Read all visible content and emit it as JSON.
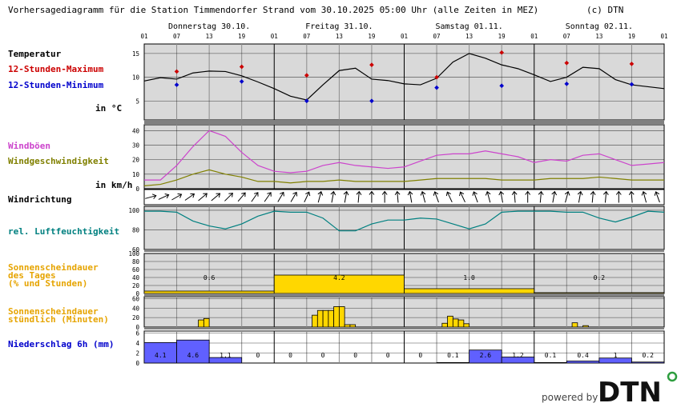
{
  "title": "Vorhersagediagramm für die Station Timmendorfer Strand vom 30.10.2025 05:00 Uhr (alle Zeiten in MEZ)",
  "copyright": "(c) DTN",
  "powered_by": "powered by",
  "logo_text": "DTN",
  "colors": {
    "tmax": "#cc0000",
    "tmin": "#0000cc",
    "gust": "#cc44cc",
    "wind": "#808000",
    "humidity": "#008080",
    "sun": "#ffd700",
    "precip": "#6060ff",
    "panel_bg": "#d9d9d9"
  },
  "days": [
    "Donnerstag 30.10.",
    "Freitag 31.10.",
    "Samstag 01.11.",
    "Sonntag 02.11."
  ],
  "hour_labels": [
    "01",
    "07",
    "13",
    "19",
    "01",
    "07",
    "13",
    "19",
    "01",
    "07",
    "13",
    "19",
    "01",
    "07",
    "13",
    "19",
    "01"
  ],
  "labels": {
    "temp": "Temperatur",
    "tmax": "12-Stunden-Maximum",
    "tmin": "12-Stunden-Minimum",
    "temp_unit": "in °C",
    "gust": "Windböen",
    "wind": "Windgeschwindigkeit",
    "wind_unit": "in km/h",
    "winddir": "Windrichtung",
    "humidity": "rel. Luftfeuchtigkeit",
    "sun_daily_1": "Sonnenscheindauer",
    "sun_daily_2": "des Tages",
    "sun_daily_3": "(% und Stunden)",
    "sun_hourly_1": "Sonnenscheindauer",
    "sun_hourly_2": "stündlich (Minuten)",
    "precip": "Niederschlag 6h (mm)"
  },
  "chart_data": [
    {
      "type": "line",
      "name": "temperature",
      "x_hours": [
        0,
        3,
        6,
        9,
        12,
        15,
        18,
        21,
        24,
        27,
        30,
        33,
        36,
        39,
        42,
        45,
        48,
        51,
        54,
        57,
        60,
        63,
        66,
        69,
        72,
        75,
        78,
        81,
        84,
        87,
        90,
        93,
        96
      ],
      "y": [
        9.2,
        9.9,
        9.6,
        10.9,
        11.3,
        11.2,
        10.3,
        9.0,
        7.6,
        6.0,
        5.2,
        8.4,
        11.4,
        11.9,
        9.6,
        9.3,
        8.6,
        8.4,
        9.8,
        13.2,
        15.0,
        14.0,
        12.6,
        11.8,
        10.5,
        9.1,
        10.0,
        12.1,
        11.8,
        9.5,
        8.4,
        8.0,
        7.6
      ],
      "yticks": [
        5,
        10,
        15
      ],
      "tmax": [
        [
          6,
          11.2
        ],
        [
          18,
          12.2
        ],
        [
          30,
          10.4
        ],
        [
          42,
          12.6
        ],
        [
          54,
          10.0
        ],
        [
          66,
          15.2
        ],
        [
          78,
          13.0
        ],
        [
          90,
          12.8
        ]
      ],
      "tmin": [
        [
          6,
          8.4
        ],
        [
          18,
          9.1
        ],
        [
          30,
          5.0
        ],
        [
          42,
          5.0
        ],
        [
          54,
          7.8
        ],
        [
          66,
          8.2
        ],
        [
          78,
          8.6
        ],
        [
          90,
          8.5
        ]
      ]
    },
    {
      "type": "line",
      "name": "wind",
      "x_hours": [
        0,
        3,
        6,
        9,
        12,
        15,
        18,
        21,
        24,
        27,
        30,
        33,
        36,
        39,
        42,
        45,
        48,
        51,
        54,
        57,
        60,
        63,
        66,
        69,
        72,
        75,
        78,
        81,
        84,
        87,
        90,
        93,
        96
      ],
      "gusts": [
        6,
        6,
        16,
        29,
        40,
        36,
        25,
        16,
        12,
        11,
        12,
        16,
        18,
        16,
        15,
        14,
        15,
        19,
        23,
        24,
        24,
        26,
        24,
        22,
        18,
        20,
        19,
        23,
        24,
        20,
        16,
        17,
        18
      ],
      "wind": [
        2,
        3,
        6,
        10,
        13,
        10,
        8,
        5,
        5,
        4,
        5,
        5,
        6,
        5,
        5,
        5,
        5,
        6,
        7,
        7,
        7,
        7,
        6,
        6,
        6,
        7,
        7,
        7,
        8,
        7,
        6,
        6,
        6
      ],
      "yticks": [
        0,
        10,
        20,
        30,
        40
      ]
    },
    {
      "type": "table",
      "name": "wind_direction",
      "angles_deg": [
        75,
        65,
        60,
        55,
        50,
        50,
        45,
        40,
        35,
        35,
        30,
        30,
        25,
        15,
        10,
        10,
        5,
        0,
        0,
        355,
        350,
        345,
        340,
        335,
        335,
        340,
        345,
        350,
        355,
        0,
        5,
        10,
        15,
        10,
        5,
        5,
        0,
        355,
        345,
        340
      ]
    },
    {
      "type": "line",
      "name": "humidity",
      "x_hours": [
        0,
        3,
        6,
        9,
        12,
        15,
        18,
        21,
        24,
        27,
        30,
        33,
        36,
        39,
        42,
        45,
        48,
        51,
        54,
        57,
        60,
        63,
        66,
        69,
        72,
        75,
        78,
        81,
        84,
        87,
        90,
        93,
        96
      ],
      "y": [
        99,
        99,
        98,
        89,
        84,
        81,
        86,
        94,
        99,
        98,
        98,
        92,
        79,
        79,
        86,
        90,
        90,
        92,
        91,
        86,
        81,
        86,
        98,
        99,
        99,
        99,
        98,
        98,
        92,
        88,
        93,
        99,
        98
      ],
      "yticks": [
        60,
        80,
        100
      ]
    },
    {
      "type": "bar",
      "name": "sunshine_daily",
      "categories": [
        "30.10.",
        "31.10.",
        "01.11.",
        "02.11."
      ],
      "percent": [
        6,
        46,
        12,
        2
      ],
      "hours": [
        "0.6",
        "4.2",
        "1.0",
        "0.2"
      ],
      "yticks": [
        0,
        20,
        40,
        60,
        80,
        100
      ]
    },
    {
      "type": "bar",
      "name": "sunshine_hourly",
      "hours": [
        10,
        11,
        31,
        32,
        33,
        34,
        35,
        36,
        37,
        38,
        55,
        56,
        57,
        58,
        59,
        79,
        81
      ],
      "minutes": [
        15,
        18,
        25,
        35,
        35,
        35,
        43,
        43,
        5,
        5,
        8,
        23,
        17,
        15,
        7,
        9,
        3
      ],
      "yticks": [
        0,
        20,
        40,
        60
      ]
    },
    {
      "type": "bar",
      "name": "precipitation_6h",
      "values": [
        4.1,
        4.6,
        1.1,
        0,
        0,
        0,
        0,
        0,
        0,
        0.1,
        2.6,
        1.2,
        0.1,
        0.4,
        1,
        0.2
      ],
      "labels": [
        "4.1",
        "4.6",
        "1.1",
        "0",
        "0",
        "0",
        "0",
        "0",
        "0",
        "0.1",
        "2.6",
        "1.2",
        "0.1",
        "0.4",
        "1",
        "0.2"
      ],
      "yticks": [
        0,
        2,
        4,
        6
      ]
    }
  ]
}
